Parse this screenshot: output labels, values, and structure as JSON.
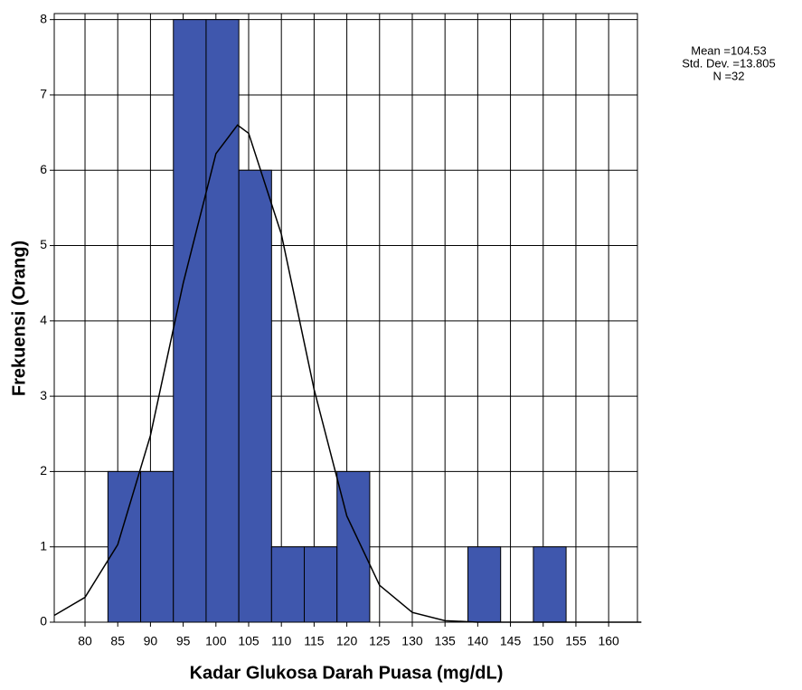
{
  "chart_data": {
    "type": "histogram",
    "x_label": "Kadar Glukosa Darah Puasa (mg/dL)",
    "y_label": "Frekuensi (Orang)",
    "annotations": [
      "Mean =104.53",
      "Std. Dev. =13.805",
      "N =32"
    ],
    "bins": [
      83.5,
      88.5,
      93.5,
      98.5,
      103.5,
      108.5,
      113.5,
      118.5,
      123.5,
      128.5,
      133.5,
      138.5,
      143.5,
      148.5,
      153.5
    ],
    "counts": [
      2,
      2,
      8,
      8,
      6,
      1,
      1,
      2,
      0,
      0,
      0,
      1,
      0,
      1
    ],
    "color": "#3f57ad",
    "curve": {
      "x": [
        75.3,
        80,
        85,
        90,
        95,
        100,
        103.3,
        105,
        110,
        115,
        120,
        125,
        130,
        135,
        140,
        165
      ],
      "values": [
        0.09,
        0.33,
        1.03,
        2.48,
        4.5,
        6.22,
        6.6,
        6.49,
        5.15,
        3.09,
        1.41,
        0.49,
        0.13,
        0.02,
        0,
        0
      ],
      "color": "#000000"
    },
    "xlim": [
      75.3,
      164.4
    ],
    "ylim": [
      0,
      8.08
    ],
    "xticks": [
      80,
      85,
      90,
      95,
      100,
      105,
      110,
      115,
      120,
      125,
      130,
      135,
      140,
      145,
      150,
      155,
      160
    ],
    "yticks": [
      0,
      1,
      2,
      3,
      4,
      5,
      6,
      7,
      8
    ],
    "grid": true
  }
}
